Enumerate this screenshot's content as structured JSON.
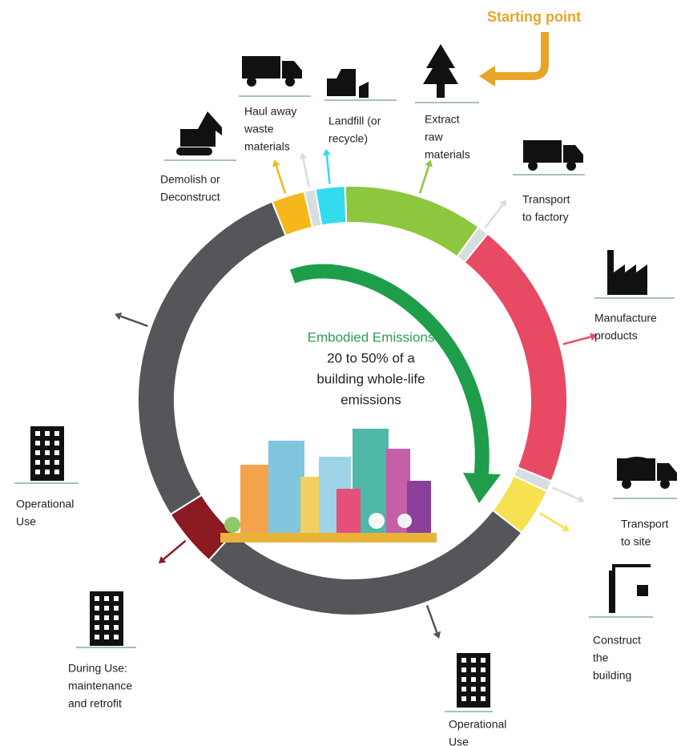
{
  "starting_point": "Starting point",
  "center": {
    "title": "Embodied Emissions",
    "lines": [
      "20 to 50% of a",
      "building whole-life",
      "emissions"
    ]
  },
  "stages": [
    {
      "lines": [
        "Extract",
        "raw",
        "materials"
      ]
    },
    {
      "lines": [
        "Transport",
        "to factory"
      ]
    },
    {
      "lines": [
        "Manufacture",
        "products"
      ]
    },
    {
      "lines": [
        "Transport",
        "to site"
      ]
    },
    {
      "lines": [
        "Construct",
        "the",
        "building"
      ]
    },
    {
      "lines": [
        "Operational",
        "Use"
      ]
    },
    {
      "lines": [
        "During Use:",
        "maintenance",
        "and retrofit"
      ]
    },
    {
      "lines": [
        "Operational",
        "Use"
      ]
    },
    {
      "lines": [
        "Demolish or",
        "Deconstruct"
      ]
    },
    {
      "lines": [
        "Haul away",
        "waste",
        "materials"
      ]
    },
    {
      "lines": [
        "Landfill (or",
        "recycle)"
      ]
    }
  ]
}
